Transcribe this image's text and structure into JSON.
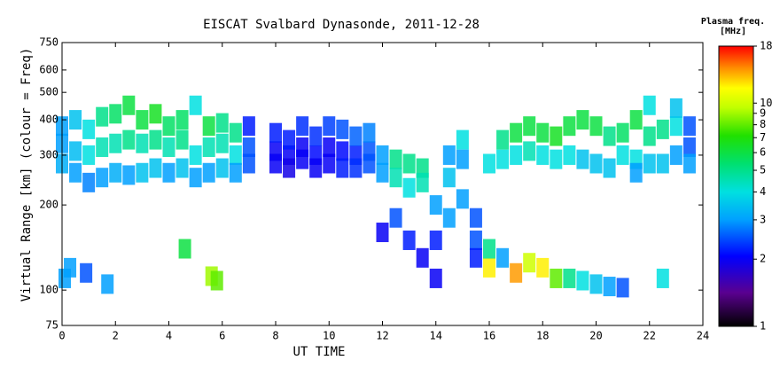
{
  "chart_data": {
    "type": "scatter",
    "title": "EISCAT Svalbard Dynasonde, 2011-12-28",
    "x_label": "UT TIME",
    "y_label": "Virtual Range [km] (colour = Freq)",
    "colorbar_title": [
      "Plasma freq.",
      "[MHz]"
    ],
    "xlim": [
      0,
      24
    ],
    "xticks": [
      0,
      2,
      4,
      6,
      8,
      10,
      12,
      14,
      16,
      18,
      20,
      22,
      24
    ],
    "ylim": [
      75,
      750
    ],
    "yticks": [
      75,
      100,
      200,
      300,
      400,
      500,
      600,
      750
    ],
    "ylog": true,
    "clim": [
      1,
      18
    ],
    "cticks": [
      1,
      2,
      3,
      4,
      5,
      6,
      7,
      8,
      9,
      10,
      18
    ],
    "clog": true,
    "x": [
      0,
      0,
      0,
      0.5,
      0.5,
      0.5,
      1,
      1,
      1,
      1.5,
      1.5,
      1.5,
      2,
      2,
      2,
      2.5,
      2.5,
      2.5,
      3,
      3,
      3,
      3.5,
      3.5,
      3.5,
      4,
      4,
      4,
      4.5,
      4.5,
      4.5,
      5,
      5,
      5,
      5.5,
      5.5,
      5.5,
      6,
      6,
      6,
      6.5,
      6.5,
      6.5,
      7,
      7,
      7,
      8,
      8,
      8,
      8.5,
      8.5,
      8.5,
      9,
      9,
      9,
      9.5,
      9.5,
      9.5,
      10,
      10,
      10,
      10.5,
      10.5,
      10.5,
      11,
      11,
      11,
      11.5,
      11.5,
      11.5,
      12,
      12,
      12,
      12.5,
      12.5,
      12.5,
      13,
      13,
      13,
      13.5,
      13.5,
      13.5,
      14,
      14,
      14,
      14.5,
      14.5,
      14.5,
      15,
      15,
      15,
      15.5,
      15.5,
      15.5,
      16,
      16,
      16,
      16.5,
      16.5,
      16.5,
      17,
      17,
      17,
      17.5,
      17.5,
      17.5,
      18,
      18,
      18,
      18.5,
      18.5,
      18.5,
      19,
      19,
      19,
      19.5,
      19.5,
      19.5,
      20,
      20,
      20,
      20.5,
      20.5,
      20.5,
      21,
      21,
      21,
      21.5,
      21.5,
      21.5,
      22,
      22,
      22,
      22.5,
      22.5,
      22.5,
      23,
      23,
      23,
      23.5,
      23.5,
      23.5,
      0.1,
      0.3,
      0.9,
      1.7,
      4.6,
      5.6,
      5.8
    ],
    "values": [
      330,
      280,
      380,
      310,
      260,
      400,
      240,
      300,
      370,
      250,
      320,
      410,
      260,
      330,
      420,
      255,
      340,
      450,
      260,
      330,
      400,
      270,
      340,
      420,
      260,
      320,
      380,
      270,
      340,
      400,
      250,
      300,
      450,
      260,
      320,
      380,
      270,
      330,
      390,
      300,
      360,
      260,
      320,
      380,
      280,
      310,
      360,
      280,
      300,
      340,
      270,
      320,
      380,
      290,
      300,
      350,
      270,
      320,
      380,
      280,
      310,
      370,
      270,
      300,
      350,
      270,
      310,
      360,
      280,
      300,
      260,
      160,
      290,
      250,
      180,
      280,
      230,
      150,
      270,
      240,
      130,
      200,
      150,
      110,
      300,
      250,
      180,
      290,
      340,
      210,
      180,
      150,
      130,
      280,
      120,
      140,
      290,
      340,
      130,
      300,
      360,
      115,
      310,
      380,
      125,
      300,
      360,
      120,
      290,
      350,
      110,
      300,
      380,
      110,
      290,
      400,
      108,
      280,
      380,
      105,
      270,
      350,
      103,
      300,
      360,
      102,
      290,
      400,
      260,
      280,
      350,
      450,
      280,
      370,
      110,
      300,
      380,
      440,
      320,
      380,
      280,
      110,
      120,
      115,
      105,
      140,
      112,
      108
    ],
    "freq": [
      3,
      3.2,
      3,
      3.4,
      3,
      3.5,
      2.8,
      4,
      4,
      3,
      4.5,
      5,
      3.2,
      4.5,
      5.5,
      3,
      5,
      6,
      3.5,
      4.5,
      6,
      3.5,
      5,
      6.5,
      3,
      4.5,
      5.5,
      3.5,
      5,
      5.5,
      3,
      4,
      4,
      3,
      4.5,
      6,
      3.5,
      4.5,
      5,
      4,
      5,
      3,
      2.5,
      2.2,
      2.5,
      2,
      2.2,
      2,
      2,
      2.2,
      1.9,
      2,
      2.3,
      2,
      2.1,
      2.3,
      2,
      2,
      2.4,
      2,
      2.1,
      2.5,
      2.2,
      2.2,
      2.6,
      2.3,
      2.5,
      2.8,
      2.5,
      3,
      3,
      2,
      5,
      4.5,
      2.5,
      5,
      4,
      2.2,
      5,
      4.5,
      2,
      3,
      2.2,
      2,
      3,
      3.5,
      3,
      3,
      4,
      3,
      2.5,
      2.5,
      2.2,
      4,
      12,
      5,
      4,
      5,
      3,
      4,
      6,
      14,
      4.5,
      6,
      10,
      4,
      6,
      12,
      4,
      6.5,
      8,
      4,
      6,
      5,
      3.5,
      6,
      4,
      3.5,
      6,
      3.5,
      3.5,
      5,
      3,
      4,
      5.5,
      2.5,
      4,
      6,
      3,
      3.5,
      5,
      4,
      3.5,
      5,
      4,
      3,
      4,
      3.5,
      2.5,
      2.5,
      3,
      3,
      3,
      2.5,
      3,
      6,
      9,
      8
    ]
  }
}
